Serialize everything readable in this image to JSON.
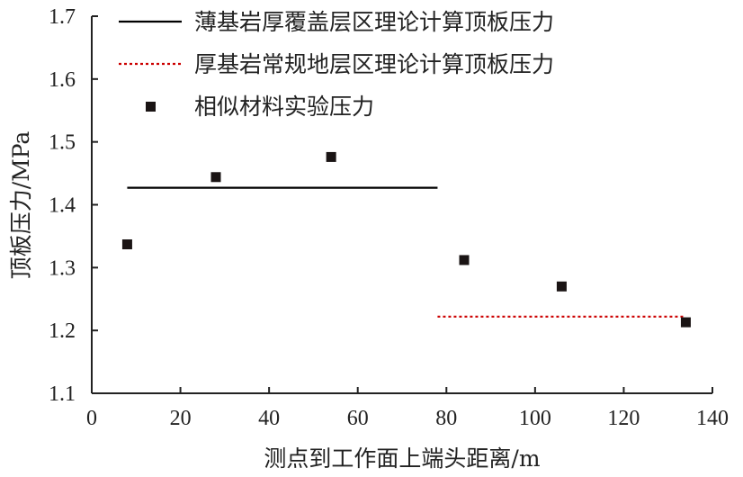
{
  "chart_data": {
    "type": "scatter",
    "xlabel": "测点到工作面上端头距离/m",
    "ylabel": "顶板压力/MPa",
    "xlim": [
      0,
      140
    ],
    "ylim": [
      1.1,
      1.7
    ],
    "xticks": [
      "0",
      "20",
      "40",
      "60",
      "80",
      "100",
      "120",
      "140"
    ],
    "yticks": [
      "1.1",
      "1.2",
      "1.3",
      "1.4",
      "1.5",
      "1.6",
      "1.7"
    ],
    "grid": false,
    "legend_position": "top",
    "series": [
      {
        "name": "薄基岩厚覆盖层区理论计算顶板压力",
        "kind": "line",
        "style": "solid",
        "color": "#000000",
        "x": [
          8,
          78
        ],
        "y": [
          1.427,
          1.427
        ]
      },
      {
        "name": "厚基岩常规地层区理论计算顶板压力",
        "kind": "line",
        "style": "dotted",
        "color": "#cc0000",
        "x": [
          78,
          134
        ],
        "y": [
          1.222,
          1.222
        ]
      },
      {
        "name": "相似材料实验压力",
        "kind": "scatter",
        "marker": "square",
        "color": "#1a1414",
        "x": [
          8,
          28,
          54,
          84,
          106,
          134
        ],
        "y": [
          1.337,
          1.444,
          1.476,
          1.312,
          1.27,
          1.213
        ]
      }
    ]
  }
}
